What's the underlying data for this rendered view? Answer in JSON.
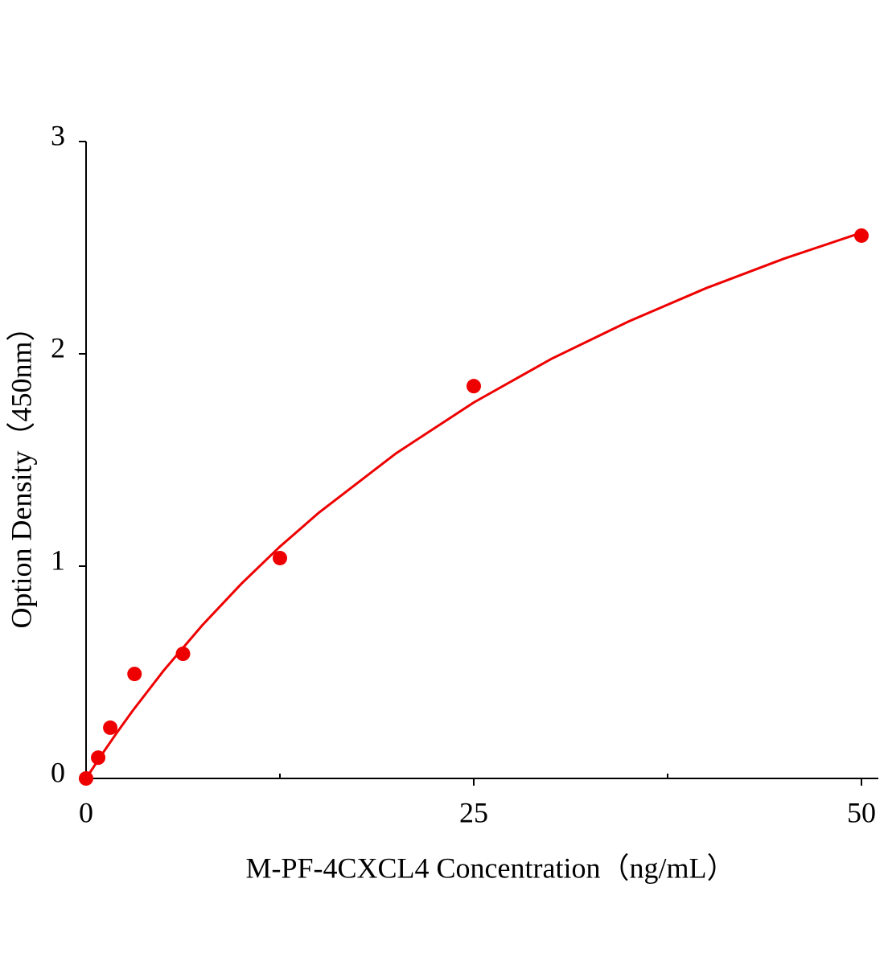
{
  "chart_data": {
    "type": "scatter",
    "xlabel": "M-PF-4CXCL4 Concentration（ng/mL）",
    "ylabel": "Option Density（450nm）",
    "x": [
      0,
      0.78,
      1.56,
      3.125,
      6.25,
      12.5,
      25,
      50
    ],
    "values": [
      0,
      0.098,
      0.239,
      0.492,
      0.587,
      1.038,
      1.848,
      2.557
    ],
    "color": "#ee0000",
    "fit": {
      "x": [
        0,
        1,
        2,
        3,
        5,
        7.5,
        10,
        12.5,
        15,
        20,
        25,
        30,
        35,
        40,
        45,
        50
      ],
      "values": [
        0,
        0.111,
        0.217,
        0.318,
        0.508,
        0.722,
        0.916,
        1.092,
        1.251,
        1.532,
        1.771,
        1.976,
        2.153,
        2.31,
        2.448,
        2.571
      ],
      "color": "#ee0000"
    },
    "xlim": [
      0,
      51.09
    ],
    "ylim": [
      0,
      3
    ],
    "xticks": [
      0,
      25,
      50
    ],
    "x_minor_ticks": [
      12.5,
      37.5
    ],
    "yticks": [
      0,
      1,
      2,
      3
    ]
  }
}
